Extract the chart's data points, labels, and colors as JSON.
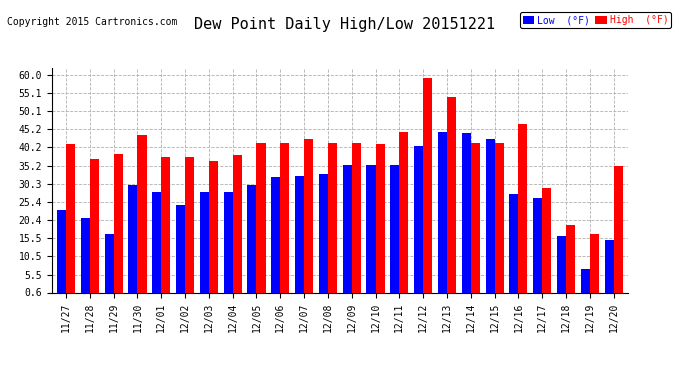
{
  "title": "Dew Point Daily High/Low 20151221",
  "copyright": "Copyright 2015 Cartronics.com",
  "dates": [
    "11/27",
    "11/28",
    "11/29",
    "11/30",
    "12/01",
    "12/02",
    "12/03",
    "12/04",
    "12/05",
    "12/06",
    "12/07",
    "12/08",
    "12/09",
    "12/10",
    "12/11",
    "12/12",
    "12/13",
    "12/14",
    "12/15",
    "12/16",
    "12/17",
    "12/18",
    "12/19",
    "12/20"
  ],
  "high_values": [
    41.0,
    37.0,
    38.5,
    43.5,
    37.5,
    37.5,
    36.5,
    38.0,
    41.5,
    41.5,
    42.5,
    41.5,
    41.5,
    41.0,
    44.5,
    59.0,
    54.0,
    41.5,
    41.5,
    46.5,
    29.0,
    19.0,
    16.5,
    35.0
  ],
  "low_values": [
    23.0,
    21.0,
    16.5,
    30.0,
    28.0,
    24.5,
    28.0,
    28.0,
    30.0,
    32.0,
    32.5,
    33.0,
    35.5,
    35.5,
    35.5,
    40.5,
    44.5,
    44.0,
    42.5,
    27.5,
    26.5,
    16.0,
    7.0,
    15.0
  ],
  "high_color": "#ff0000",
  "low_color": "#0000ff",
  "bg_color": "#ffffff",
  "plot_bg_color": "#ffffff",
  "grid_color": "#b0b0b0",
  "yticks": [
    0.6,
    5.5,
    10.5,
    15.5,
    20.4,
    25.4,
    30.3,
    35.2,
    40.2,
    45.2,
    50.1,
    55.1,
    60.0
  ],
  "ylim": [
    0.6,
    62.0
  ],
  "bar_width": 0.38,
  "title_fontsize": 11,
  "copyright_fontsize": 7,
  "tick_fontsize": 7,
  "legend_fontsize": 7
}
